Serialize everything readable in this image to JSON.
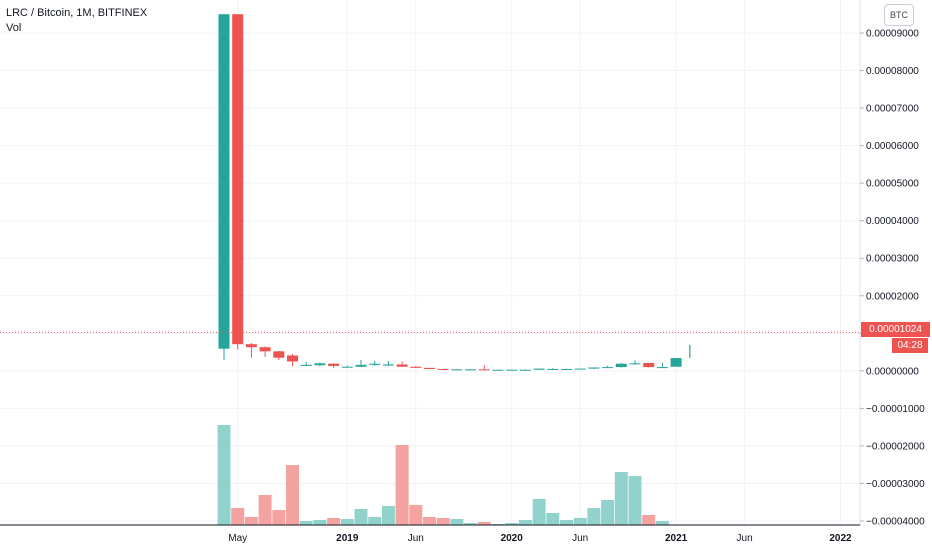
{
  "legend": {
    "symbol": "LRC / Bitcoin, 1M, BITFINEX",
    "volume_label": "Vol"
  },
  "unit_button": "BTC",
  "last_price": {
    "value": 1.024e-05,
    "label": "0.00001024",
    "countdown": "04:28"
  },
  "colors": {
    "up": "#26a69a",
    "down": "#ef5350",
    "vol_up": "#91d3cc",
    "vol_down": "#f5a3a1",
    "grid": "#f0f3fa",
    "price_line": "#ef5350"
  },
  "chart_data": {
    "type": "candlestick",
    "title": "LRC / Bitcoin, 1M, BITFINEX",
    "y_axis": {
      "ticks": [
        {
          "value": 9e-05,
          "label": "0.00009000"
        },
        {
          "value": 8e-05,
          "label": "0.00008000"
        },
        {
          "value": 7e-05,
          "label": "0.00007000"
        },
        {
          "value": 6e-05,
          "label": "0.00006000"
        },
        {
          "value": 5e-05,
          "label": "0.00005000"
        },
        {
          "value": 4e-05,
          "label": "0.00004000"
        },
        {
          "value": 3e-05,
          "label": "0.00003000"
        },
        {
          "value": 2e-05,
          "label": "0.00002000"
        },
        {
          "value": 1e-05,
          "label": "0.00001000"
        },
        {
          "value": 0.0,
          "label": "0.00000000"
        },
        {
          "value": -1e-05,
          "label": "−0.00001000"
        },
        {
          "value": -2e-05,
          "label": "−0.00002000"
        },
        {
          "value": -3e-05,
          "label": "−0.00003000"
        },
        {
          "value": -4e-05,
          "label": "−0.00004000"
        }
      ],
      "range": [
        -4.05e-05,
        9.45e-05
      ]
    },
    "x_axis": {
      "ticks": [
        {
          "index": 1,
          "label": "May",
          "bold": false
        },
        {
          "index": 9,
          "label": "2019",
          "bold": true
        },
        {
          "index": 14,
          "label": "Jun",
          "bold": false
        },
        {
          "index": 21,
          "label": "2020",
          "bold": true
        },
        {
          "index": 26,
          "label": "Jun",
          "bold": false
        },
        {
          "index": 33,
          "label": "2021",
          "bold": true
        },
        {
          "index": 38,
          "label": "Jun",
          "bold": false
        },
        {
          "index": 45,
          "label": "2022",
          "bold": true
        }
      ]
    },
    "candles": [
      {
        "o": 5.9e-06,
        "h": 9.5e-05,
        "l": 2.9e-06,
        "c": 9.5e-05,
        "v": 1.0
      },
      {
        "o": 9.5e-05,
        "h": 9.5e-05,
        "l": 5.7e-06,
        "c": 7.1e-06,
        "v": 0.17
      },
      {
        "o": 7.1e-06,
        "h": 7.4e-06,
        "l": 3.5e-06,
        "c": 6.3e-06,
        "v": 0.08
      },
      {
        "o": 6.3e-06,
        "h": 6.5e-06,
        "l": 3.7e-06,
        "c": 5.2e-06,
        "v": 0.3
      },
      {
        "o": 5.2e-06,
        "h": 5.3e-06,
        "l": 2.9e-06,
        "c": 3.5e-06,
        "v": 0.15
      },
      {
        "o": 4.1e-06,
        "h": 4.5e-06,
        "l": 1.3e-06,
        "c": 2.5e-06,
        "v": 0.6
      },
      {
        "o": 1.3e-06,
        "h": 2.4e-06,
        "l": 1.3e-06,
        "c": 1.6e-06,
        "v": 0.04
      },
      {
        "o": 1.5e-06,
        "h": 2.2e-06,
        "l": 1.2e-06,
        "c": 2e-06,
        "v": 0.05
      },
      {
        "o": 1.9e-06,
        "h": 2e-06,
        "l": 8e-07,
        "c": 1.3e-06,
        "v": 0.07
      },
      {
        "o": 1.1e-06,
        "h": 1.4e-06,
        "l": 1e-06,
        "c": 1.1e-06,
        "v": 0.06
      },
      {
        "o": 1.1e-06,
        "h": 2.9e-06,
        "l": 1e-06,
        "c": 1.6e-06,
        "v": 0.16
      },
      {
        "o": 1.6e-06,
        "h": 2.7e-06,
        "l": 1.3e-06,
        "c": 1.9e-06,
        "v": 0.08
      },
      {
        "o": 1.4e-06,
        "h": 2.6e-06,
        "l": 1.3e-06,
        "c": 1.7e-06,
        "v": 0.19
      },
      {
        "o": 1.7e-06,
        "h": 2.5e-06,
        "l": 1e-06,
        "c": 1.1e-06,
        "v": 0.8
      },
      {
        "o": 1.1e-06,
        "h": 1.3e-06,
        "l": 7e-07,
        "c": 8e-07,
        "v": 0.2
      },
      {
        "o": 8e-07,
        "h": 8e-07,
        "l": 5e-07,
        "c": 5e-07,
        "v": 0.08
      },
      {
        "o": 5e-07,
        "h": 6e-07,
        "l": 4e-07,
        "c": 4e-07,
        "v": 0.07
      },
      {
        "o": 4e-07,
        "h": 5e-07,
        "l": 4e-07,
        "c": 4e-07,
        "v": 0.06
      },
      {
        "o": 3e-07,
        "h": 4e-07,
        "l": 3e-07,
        "c": 4e-07,
        "v": 0.02
      },
      {
        "o": 4e-07,
        "h": 1.5e-06,
        "l": 3e-07,
        "c": 3e-07,
        "v": 0.03
      },
      {
        "o": 3e-07,
        "h": 3e-07,
        "l": 2e-07,
        "c": 3e-07,
        "v": 0.01
      },
      {
        "o": 3e-07,
        "h": 3e-07,
        "l": 2e-07,
        "c": 3e-07,
        "v": 0.02
      },
      {
        "o": 2e-07,
        "h": 4e-07,
        "l": 2e-07,
        "c": 3e-07,
        "v": 0.05
      },
      {
        "o": 3e-07,
        "h": 6e-07,
        "l": 3e-07,
        "c": 6e-07,
        "v": 0.26
      },
      {
        "o": 5e-07,
        "h": 7e-07,
        "l": 4e-07,
        "c": 5e-07,
        "v": 0.12
      },
      {
        "o": 5e-07,
        "h": 6e-07,
        "l": 4e-07,
        "c": 5e-07,
        "v": 0.05
      },
      {
        "o": 4e-07,
        "h": 6e-07,
        "l": 4e-07,
        "c": 6e-07,
        "v": 0.07
      },
      {
        "o": 6e-07,
        "h": 9e-07,
        "l": 5e-07,
        "c": 9e-07,
        "v": 0.17
      },
      {
        "o": 9e-07,
        "h": 1.4e-06,
        "l": 9e-07,
        "c": 1e-06,
        "v": 0.25
      },
      {
        "o": 1e-06,
        "h": 2.1e-06,
        "l": 9e-07,
        "c": 1.9e-06,
        "v": 0.53
      },
      {
        "o": 1.8e-06,
        "h": 2.8e-06,
        "l": 1.6e-06,
        "c": 2e-06,
        "v": 0.49
      },
      {
        "o": 2.1e-06,
        "h": 2.1e-06,
        "l": 9e-07,
        "c": 1e-06,
        "v": 0.1
      },
      {
        "o": 1e-06,
        "h": 2.1e-06,
        "l": 8e-07,
        "c": 1e-06,
        "v": 0.04
      },
      {
        "o": 1.1e-06,
        "h": 3.3e-06,
        "l": 1.1e-06,
        "c": 3.4e-06,
        "v": 0.0
      },
      {
        "o": 3.4e-06,
        "h": 6.9e-06,
        "l": 3.4e-06,
        "c": 6.9e-06,
        "v": 0.0
      }
    ]
  }
}
